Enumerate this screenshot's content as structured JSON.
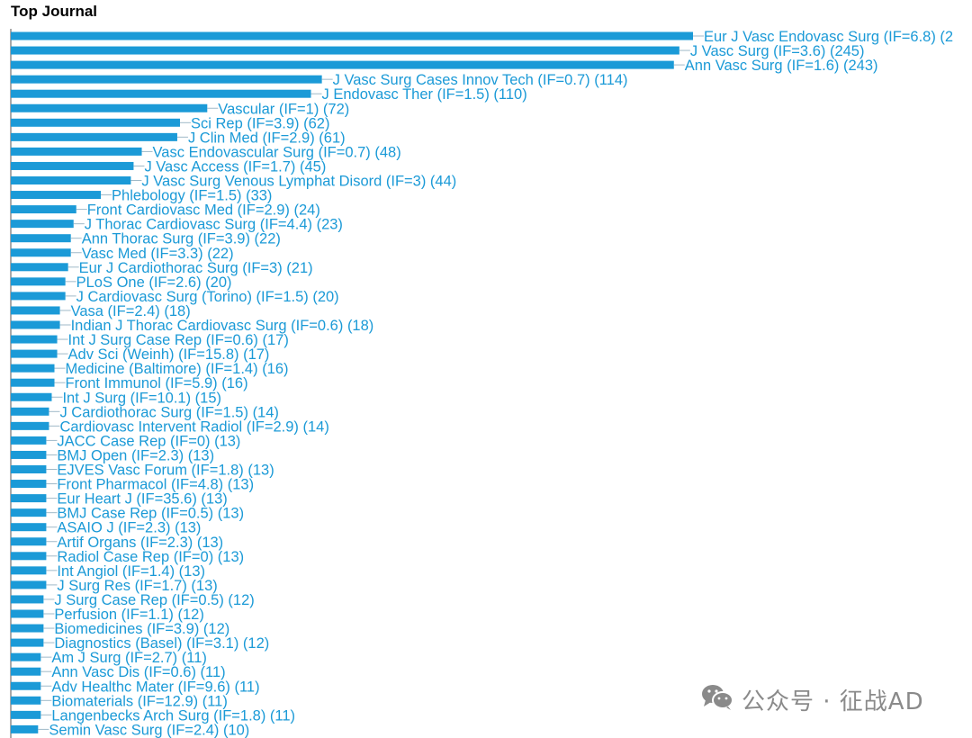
{
  "page": {
    "title": "Top Journal"
  },
  "watermark": {
    "text": "公众号 · 征战AD",
    "icon": "wechat-icon"
  },
  "colors": {
    "bar": "#1b9ad7",
    "label": "#1b9ad7",
    "axis": "#555555",
    "watermark": "#8a8a8a"
  },
  "chart_data": {
    "type": "bar",
    "orientation": "horizontal",
    "title": "Top Journal",
    "xlim": [
      0,
      250
    ],
    "grid": false,
    "legend": "none",
    "categories": [
      "Eur J Vasc Endovasc Surg (IF=6.8) (2",
      "J Vasc Surg (IF=3.6) (245)",
      "Ann Vasc Surg (IF=1.6) (243)",
      "J Vasc Surg Cases Innov Tech (IF=0.7) (114)",
      "J Endovasc Ther (IF=1.5) (110)",
      "Vascular (IF=1) (72)",
      "Sci Rep (IF=3.9) (62)",
      "J Clin Med (IF=2.9) (61)",
      "Vasc Endovascular Surg (IF=0.7) (48)",
      "J Vasc Access (IF=1.7) (45)",
      "J Vasc Surg Venous Lymphat Disord (IF=3) (44)",
      "Phlebology (IF=1.5) (33)",
      "Front Cardiovasc Med (IF=2.9) (24)",
      "J Thorac Cardiovasc Surg (IF=4.4) (23)",
      "Ann Thorac Surg (IF=3.9) (22)",
      "Vasc Med (IF=3.3) (22)",
      "Eur J Cardiothorac Surg (IF=3) (21)",
      "PLoS One (IF=2.6) (20)",
      "J Cardiovasc Surg (Torino) (IF=1.5) (20)",
      "Vasa (IF=2.4) (18)",
      "Indian J Thorac Cardiovasc Surg (IF=0.6) (18)",
      "Int J Surg Case Rep (IF=0.6) (17)",
      "Adv Sci (Weinh) (IF=15.8) (17)",
      "Medicine (Baltimore) (IF=1.4) (16)",
      "Front Immunol (IF=5.9) (16)",
      "Int J Surg (IF=10.1) (15)",
      "J Cardiothorac Surg (IF=1.5) (14)",
      "Cardiovasc Intervent Radiol (IF=2.9) (14)",
      "JACC Case Rep (IF=0) (13)",
      "BMJ Open (IF=2.3) (13)",
      "EJVES Vasc Forum (IF=1.8) (13)",
      "Front Pharmacol (IF=4.8) (13)",
      "Eur Heart J (IF=35.6) (13)",
      "BMJ Case Rep (IF=0.5) (13)",
      "ASAIO J (IF=2.3) (13)",
      "Artif Organs (IF=2.3) (13)",
      "Radiol Case Rep (IF=0) (13)",
      "Int Angiol (IF=1.4) (13)",
      "J Surg Res (IF=1.7) (13)",
      "J Surg Case Rep (IF=0.5) (12)",
      "Perfusion (IF=1.1) (12)",
      "Biomedicines (IF=3.9) (12)",
      "Diagnostics (Basel) (IF=3.1) (12)",
      "Am J Surg (IF=2.7) (11)",
      "Ann Vasc Dis (IF=0.6) (11)",
      "Adv Healthc Mater (IF=9.6) (11)",
      "Biomaterials (IF=12.9) (11)",
      "Langenbecks Arch Surg (IF=1.8) (11)",
      "Semin Vasc Surg (IF=2.4) (10)"
    ],
    "values": [
      250,
      245,
      243,
      114,
      110,
      72,
      62,
      61,
      48,
      45,
      44,
      33,
      24,
      23,
      22,
      22,
      21,
      20,
      20,
      18,
      18,
      17,
      17,
      16,
      16,
      15,
      14,
      14,
      13,
      13,
      13,
      13,
      13,
      13,
      13,
      13,
      13,
      13,
      13,
      12,
      12,
      12,
      12,
      11,
      11,
      11,
      11,
      11,
      10
    ]
  }
}
